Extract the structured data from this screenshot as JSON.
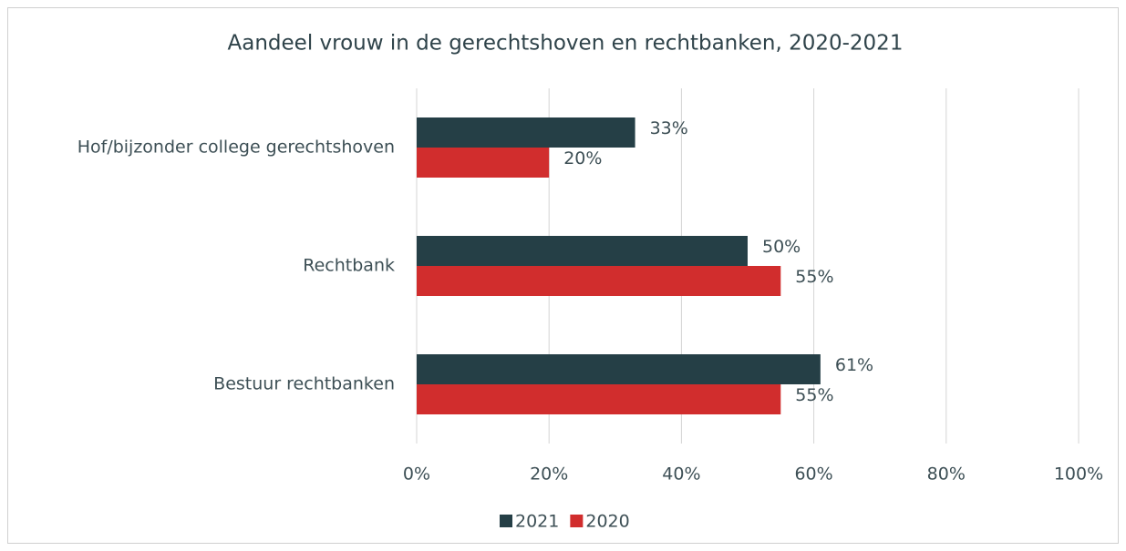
{
  "chart_data": {
    "type": "bar",
    "orientation": "horizontal",
    "title": "Aandeel vrouw in de gerechtshoven en rechtbanken, 2020-2021",
    "categories": [
      "Hof/bijzonder college gerechtshoven",
      "Rechtbank",
      "Bestuur rechtbanken"
    ],
    "series": [
      {
        "name": "2021",
        "color": "#253f46",
        "values": [
          33,
          50,
          61
        ],
        "value_labels": [
          "33%",
          "50%",
          "61%"
        ]
      },
      {
        "name": "2020",
        "color": "#d12d2d",
        "values": [
          20,
          55,
          55
        ],
        "value_labels": [
          "20%",
          "55%",
          "55%"
        ]
      }
    ],
    "xlim": [
      0,
      100
    ],
    "xticks": [
      {
        "value": 0,
        "label": "0%"
      },
      {
        "value": 20,
        "label": "20%"
      },
      {
        "value": 40,
        "label": "40%"
      },
      {
        "value": 60,
        "label": "60%"
      },
      {
        "value": 80,
        "label": "80%"
      },
      {
        "value": 100,
        "label": "100%"
      }
    ],
    "grid": true,
    "legend": "bottom"
  }
}
